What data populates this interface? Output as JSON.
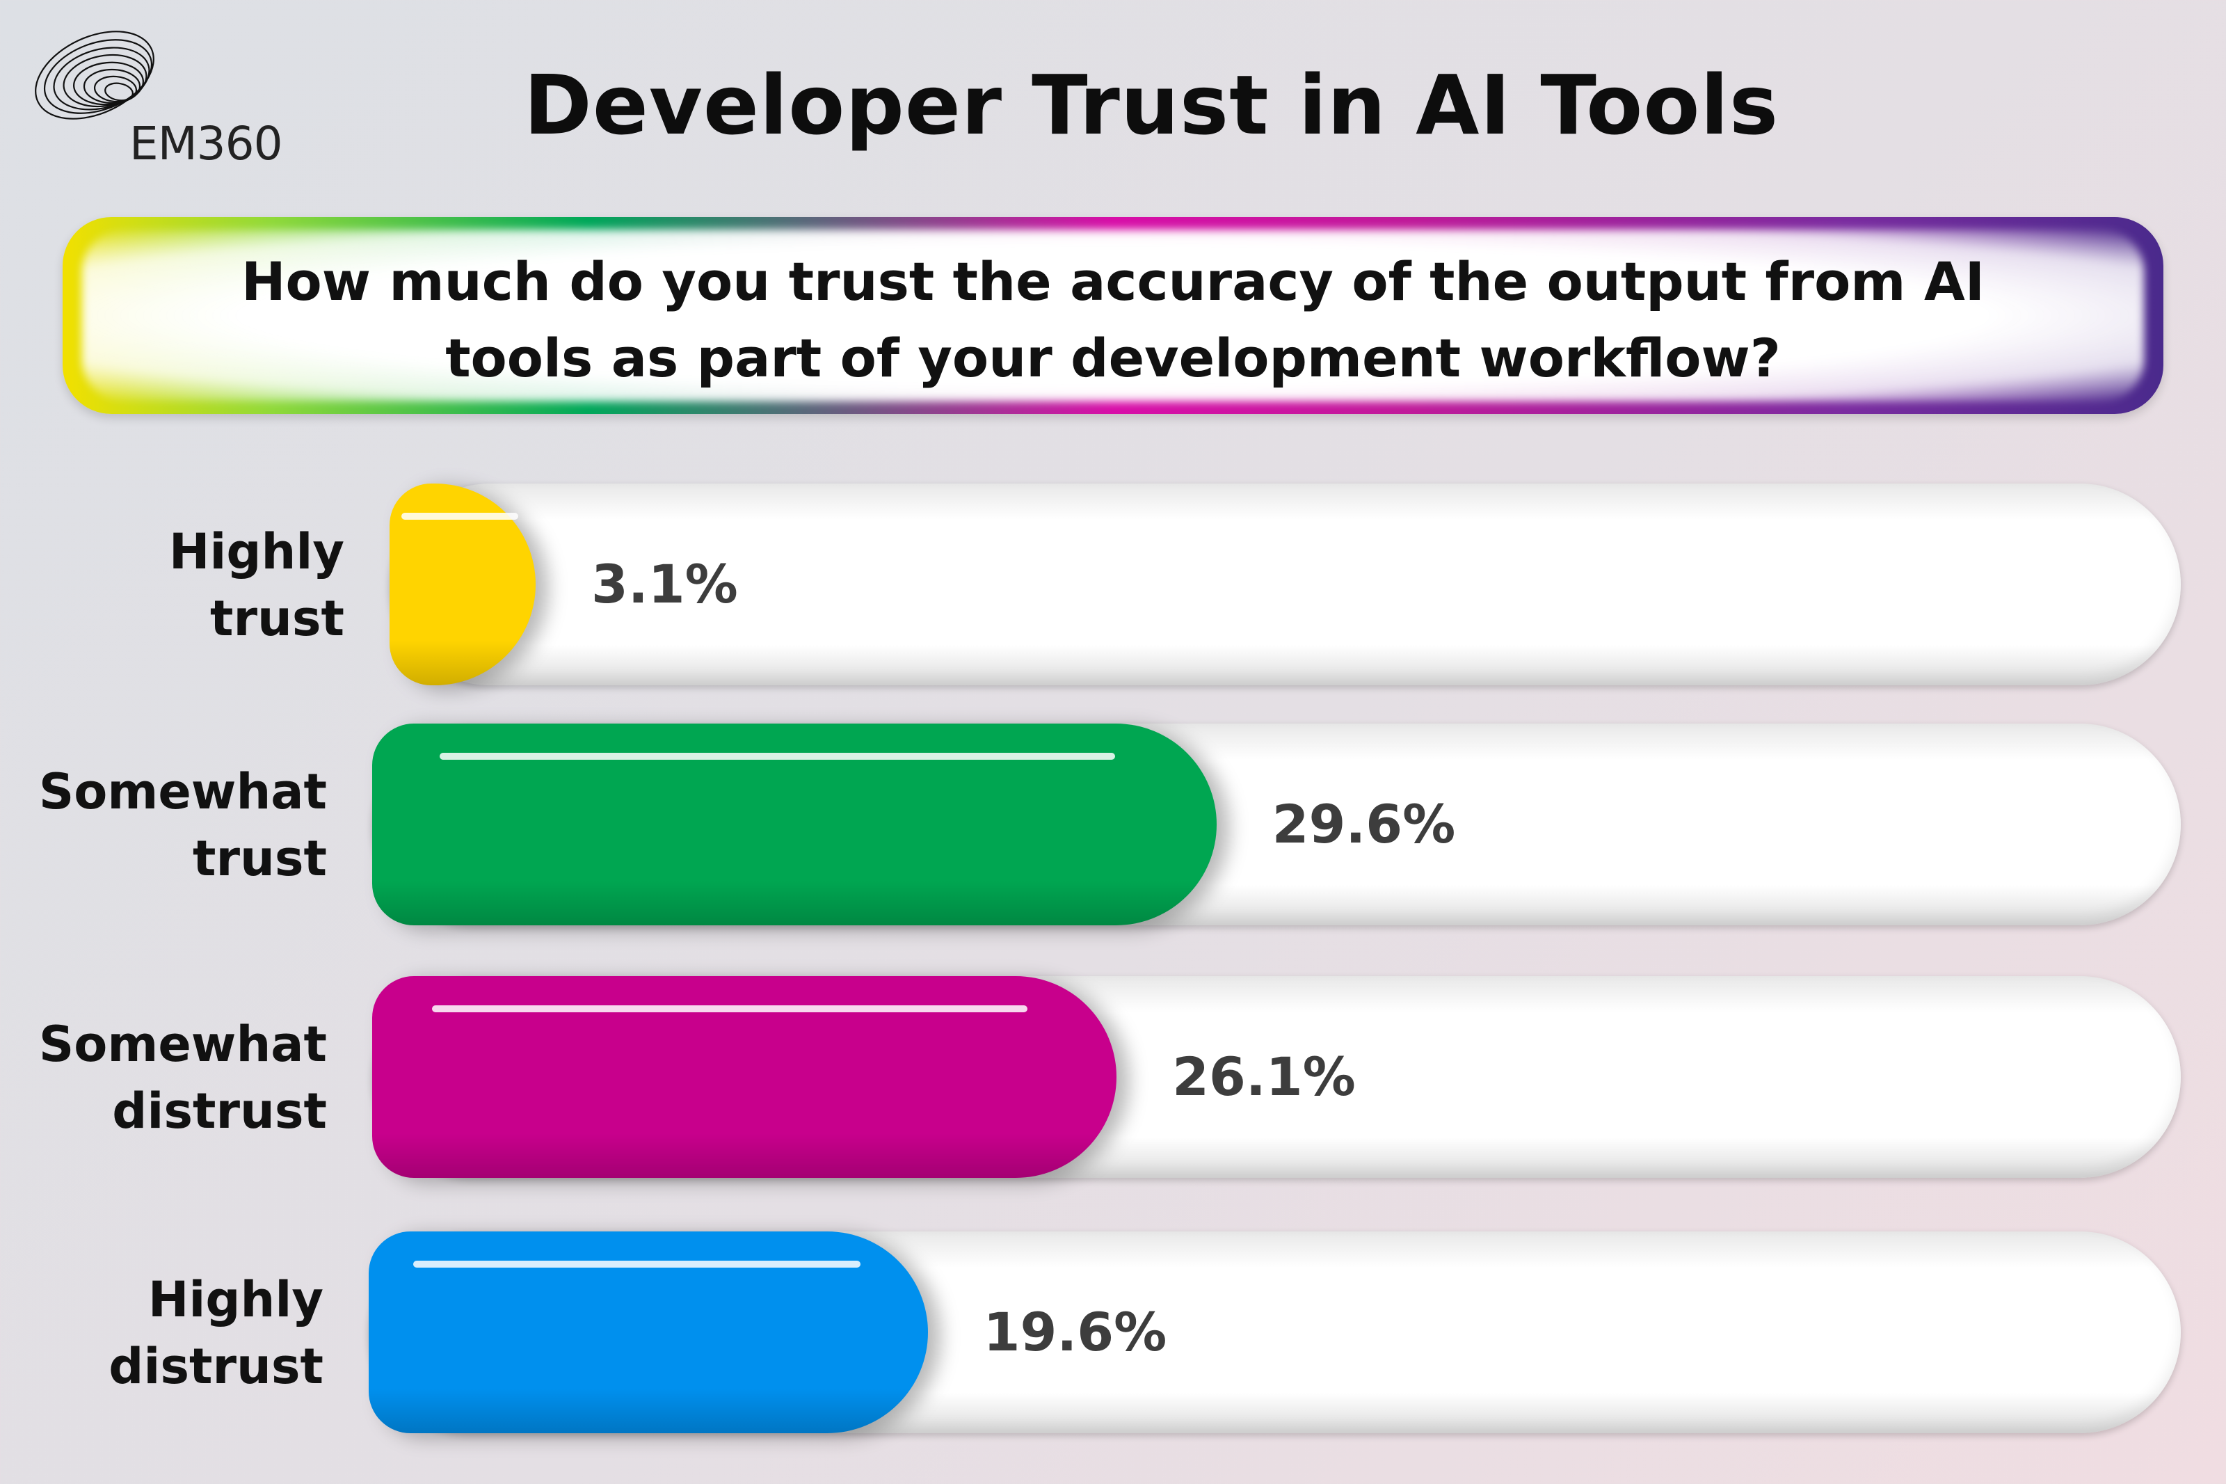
{
  "brand": {
    "logo_text": "EM360"
  },
  "title": "Developer Trust in AI Tools",
  "question": "How much do you trust the accuracy of the output from AI tools as part of your development workflow?",
  "chart_data": {
    "type": "bar",
    "orientation": "horizontal",
    "categories": [
      "Highly trust",
      "Somewhat trust",
      "Somewhat distrust",
      "Highly distrust"
    ],
    "values": [
      3.1,
      29.6,
      26.1,
      19.6
    ],
    "value_labels": [
      "3.1%",
      "29.6%",
      "26.1%",
      "19.6%"
    ],
    "label_lines": [
      [
        "Highly",
        "trust"
      ],
      [
        "Somewhat",
        "trust"
      ],
      [
        "Somewhat",
        "distrust"
      ],
      [
        "Highly",
        "distrust"
      ]
    ],
    "colors": [
      "#ffd400",
      "#00a651",
      "#c8008c",
      "#0090ee"
    ],
    "xlim": [
      0,
      100
    ],
    "grid": false,
    "legend": "none"
  }
}
